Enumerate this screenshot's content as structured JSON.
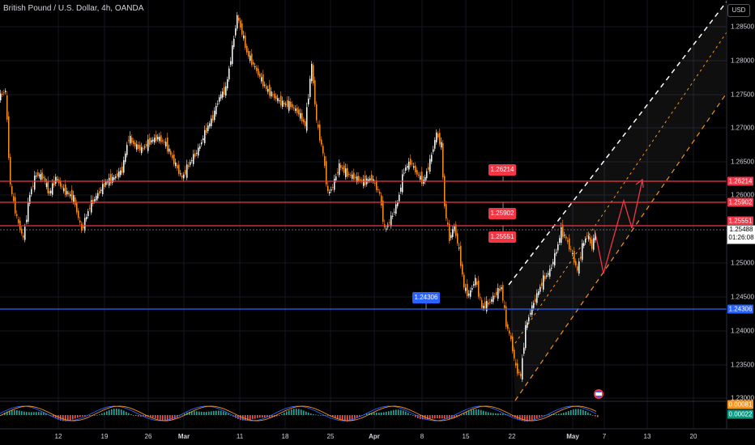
{
  "header": {
    "title": "British Pound / U.S. Dollar, 4h, OANDA",
    "currency": "USD"
  },
  "price_axis": {
    "ticks": [
      "1.28500",
      "1.28000",
      "1.27500",
      "1.27000",
      "1.26500",
      "1.26000",
      "1.25000",
      "1.24500",
      "1.24000",
      "1.23500",
      "1.23000"
    ]
  },
  "time_axis": {
    "ticks": [
      "12",
      "19",
      "26",
      "Mar",
      "11",
      "18",
      "25",
      "Apr",
      "8",
      "15",
      "22",
      "May",
      "7",
      "13",
      "20"
    ]
  },
  "levels": [
    {
      "value": "1.26214",
      "color": "#f23645"
    },
    {
      "value": "1.25902",
      "color": "#f23645"
    },
    {
      "value": "1.25551",
      "color": "#f23645"
    },
    {
      "value": "1.24306",
      "color": "#2962ff"
    }
  ],
  "current_price": {
    "value": "1.25488",
    "countdown": "01:26:08"
  },
  "macd_tags": [
    {
      "value": "0.00081",
      "color": "#f7931a"
    },
    {
      "value": "0.00022",
      "color": "#089981"
    }
  ],
  "colors": {
    "up": "#ffffff",
    "down": "#f7931a",
    "support": "#f23645",
    "blue": "#2962ff",
    "bg": "#000000"
  }
}
